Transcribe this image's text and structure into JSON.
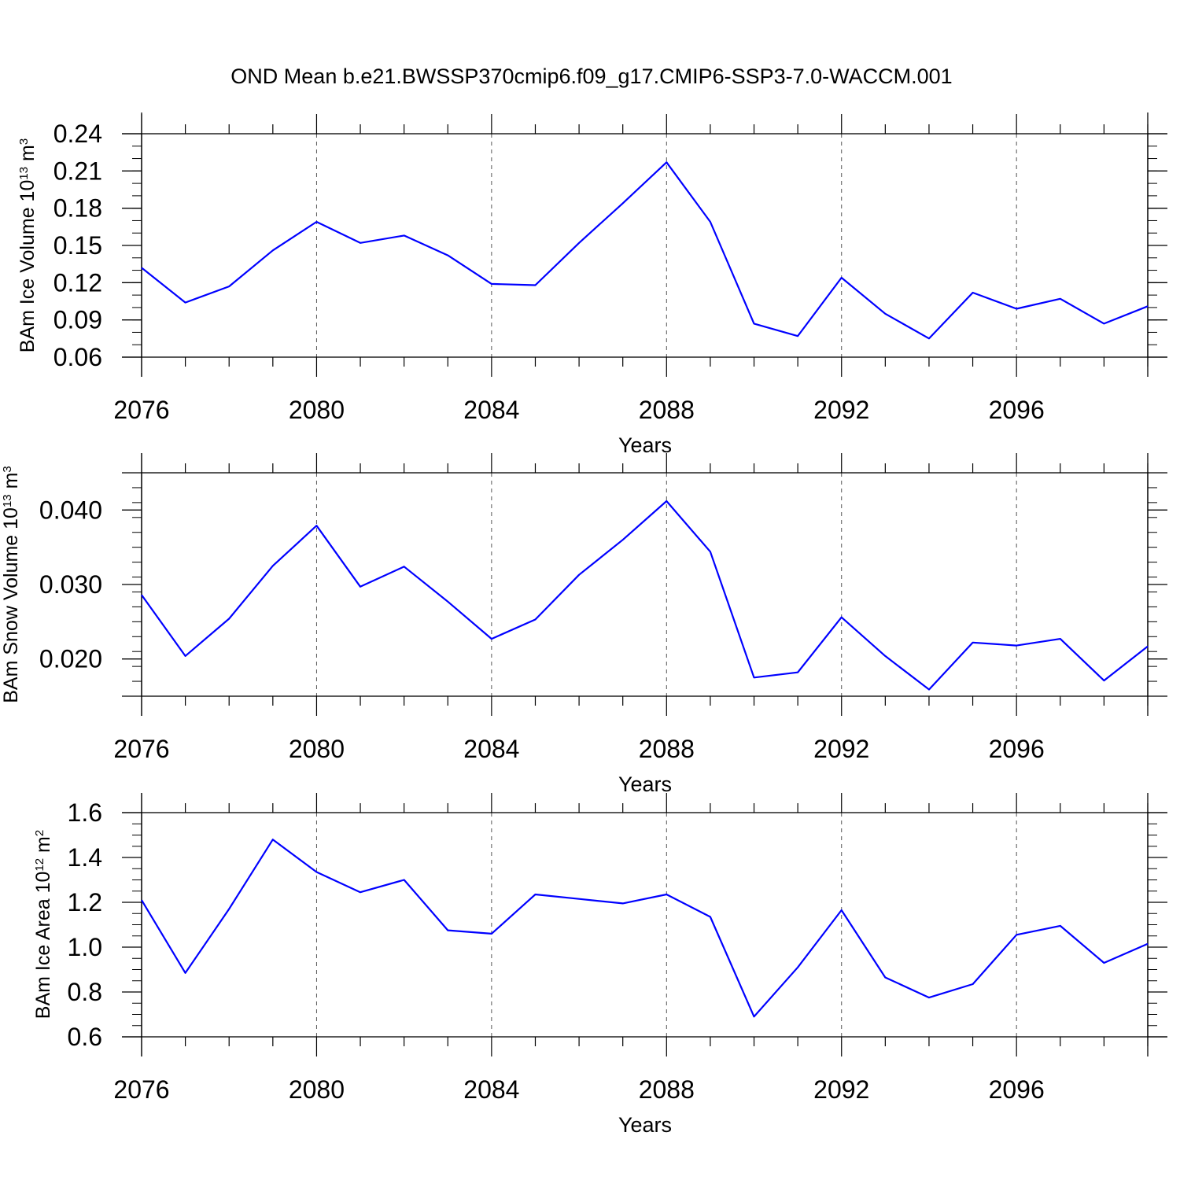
{
  "figure_title": "OND Mean b.e21.BWSSP370cmip6.f09_g17.CMIP6-SSP3-7.0-WACCM.001",
  "colors": {
    "line": "#0000ff",
    "axis": "#000000",
    "grid": "#555555"
  },
  "chart_data": [
    {
      "type": "line",
      "ylabel": {
        "main": "BAm Ice Volume 10",
        "exp": "13",
        "unit": " m",
        "unit_exp": "3"
      },
      "xlabel": "Years",
      "x": [
        2076,
        2077,
        2078,
        2079,
        2080,
        2081,
        2082,
        2083,
        2084,
        2085,
        2086,
        2087,
        2088,
        2089,
        2090,
        2091,
        2092,
        2093,
        2094,
        2095,
        2096,
        2097,
        2098,
        2099
      ],
      "series": [
        {
          "name": "BAm Ice Volume",
          "values": [
            0.132,
            0.104,
            0.117,
            0.146,
            0.169,
            0.152,
            0.158,
            0.142,
            0.119,
            0.118,
            0.152,
            0.184,
            0.217,
            0.169,
            0.087,
            0.077,
            0.124,
            0.095,
            0.075,
            0.112,
            0.099,
            0.107,
            0.087,
            0.101
          ]
        }
      ],
      "xlim": [
        2076,
        2099
      ],
      "ylim": [
        0.06,
        0.24
      ],
      "xticks": [
        2076,
        2080,
        2084,
        2088,
        2092,
        2096
      ],
      "xtick_labels": [
        "2076",
        "2080",
        "2084",
        "2088",
        "2092",
        "2096"
      ],
      "yticks": [
        0.06,
        0.09,
        0.12,
        0.15,
        0.18,
        0.21,
        0.24
      ],
      "ytick_labels": [
        "0.06",
        "0.09",
        "0.12",
        "0.15",
        "0.18",
        "0.21",
        "0.24"
      ],
      "yminor_step": 0.01,
      "grid": "vertical-dashed"
    },
    {
      "type": "line",
      "ylabel": {
        "main": "BAm Snow Volume 10",
        "exp": "13",
        "unit": " m",
        "unit_exp": "3"
      },
      "xlabel": "Years",
      "x": [
        2076,
        2077,
        2078,
        2079,
        2080,
        2081,
        2082,
        2083,
        2084,
        2085,
        2086,
        2087,
        2088,
        2089,
        2090,
        2091,
        2092,
        2093,
        2094,
        2095,
        2096,
        2097,
        2098,
        2099
      ],
      "series": [
        {
          "name": "BAm Snow Volume",
          "values": [
            0.0286,
            0.0204,
            0.0254,
            0.0325,
            0.0379,
            0.0297,
            0.0324,
            0.0277,
            0.0227,
            0.0253,
            0.0313,
            0.036,
            0.0412,
            0.0344,
            0.0175,
            0.0182,
            0.0256,
            0.0204,
            0.0159,
            0.0222,
            0.0218,
            0.0227,
            0.0171,
            0.0217
          ]
        }
      ],
      "xlim": [
        2076,
        2099
      ],
      "ylim": [
        0.015,
        0.045
      ],
      "xticks": [
        2076,
        2080,
        2084,
        2088,
        2092,
        2096
      ],
      "xtick_labels": [
        "2076",
        "2080",
        "2084",
        "2088",
        "2092",
        "2096"
      ],
      "yticks": [
        0.02,
        0.03,
        0.04
      ],
      "ytick_labels": [
        "0.020",
        "0.030",
        "0.040"
      ],
      "yminor_step": 0.002,
      "grid": "vertical-dashed"
    },
    {
      "type": "line",
      "ylabel": {
        "main": "BAm Ice Area 10",
        "exp": "12",
        "unit": " m",
        "unit_exp": "2"
      },
      "xlabel": "Years",
      "x": [
        2076,
        2077,
        2078,
        2079,
        2080,
        2081,
        2082,
        2083,
        2084,
        2085,
        2086,
        2087,
        2088,
        2089,
        2090,
        2091,
        2092,
        2093,
        2094,
        2095,
        2096,
        2097,
        2098,
        2099
      ],
      "series": [
        {
          "name": "BAm Ice Area",
          "values": [
            1.21,
            0.885,
            1.17,
            1.48,
            1.335,
            1.245,
            1.3,
            1.075,
            1.06,
            1.235,
            1.215,
            1.195,
            1.235,
            1.135,
            0.69,
            0.91,
            1.165,
            0.865,
            0.775,
            0.835,
            1.055,
            1.095,
            0.93,
            1.015
          ]
        }
      ],
      "xlim": [
        2076,
        2099
      ],
      "ylim": [
        0.6,
        1.6
      ],
      "xticks": [
        2076,
        2080,
        2084,
        2088,
        2092,
        2096
      ],
      "xtick_labels": [
        "2076",
        "2080",
        "2084",
        "2088",
        "2092",
        "2096"
      ],
      "yticks": [
        0.6,
        0.8,
        1.0,
        1.2,
        1.4,
        1.6
      ],
      "ytick_labels": [
        "0.6",
        "0.8",
        "1.0",
        "1.2",
        "1.4",
        "1.6"
      ],
      "yminor_step": 0.05,
      "grid": "vertical-dashed"
    }
  ]
}
